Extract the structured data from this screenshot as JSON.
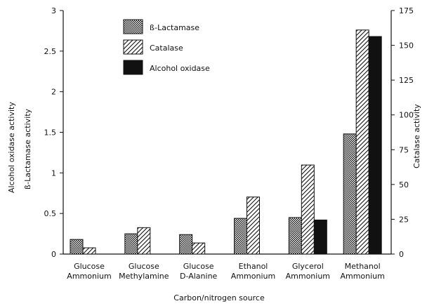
{
  "chart_data": {
    "type": "bar",
    "xlabel": "Carbon/nitrogen source",
    "ylabel_left_1": "Alcohol oxidase activity",
    "ylabel_left_2": "ß-Lactamase activity",
    "ylabel_right": "Catalase activity",
    "categories": [
      [
        "Glucose",
        "Ammonium"
      ],
      [
        "Glucose",
        "Methylamine"
      ],
      [
        "Glucose",
        "D-Alanine"
      ],
      [
        "Ethanol",
        "Ammonium"
      ],
      [
        "Glycerol",
        "Ammonium"
      ],
      [
        "Methanol",
        "Ammonium"
      ]
    ],
    "series": [
      {
        "name": "ß-Lactamase",
        "axis": "left",
        "pattern": "crosshatch",
        "values": [
          0.18,
          0.25,
          0.24,
          0.44,
          0.45,
          1.48
        ]
      },
      {
        "name": "Catalase",
        "axis": "right",
        "pattern": "diagonal",
        "values": [
          4.5,
          19,
          8,
          41,
          64,
          161
        ]
      },
      {
        "name": "Alcohol oxidase",
        "axis": "left",
        "pattern": "solid",
        "values": [
          0,
          0,
          0,
          0,
          0.42,
          2.68
        ]
      }
    ],
    "ylim_left": [
      0,
      3
    ],
    "yticks_left": [
      "0",
      "0.5",
      "1",
      "1.5",
      "2",
      "2.5",
      "3"
    ],
    "ylim_right": [
      0,
      175
    ],
    "yticks_right": [
      "0",
      "25",
      "50",
      "75",
      "100",
      "125",
      "150",
      "175"
    ],
    "grid": false,
    "legend_position": "top-left"
  }
}
